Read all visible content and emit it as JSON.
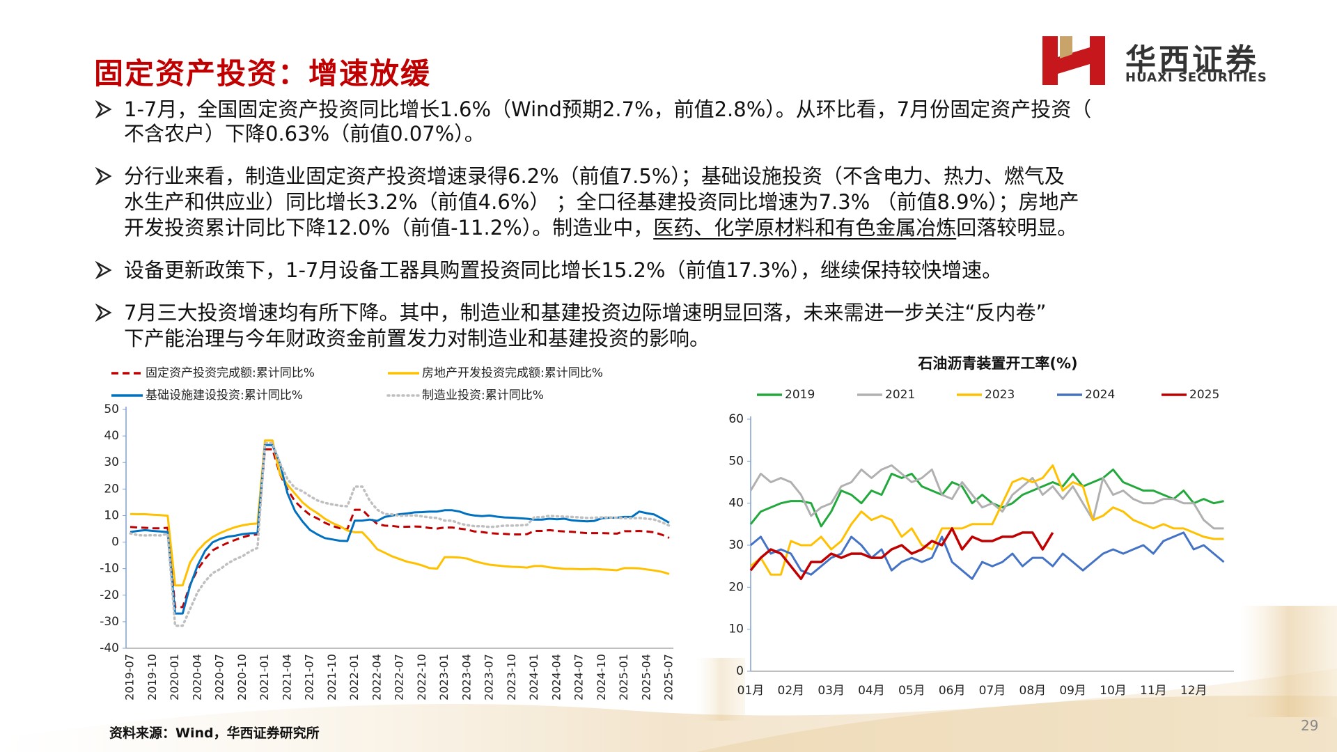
{
  "title": "固定资产投资：增速放缓",
  "logo": {
    "name": "华西证券",
    "english": "HUAXI SECURITIES"
  },
  "bullets": [
    [
      [
        "1-7月，全国固定资产投资同比增长1.6%（Wind预期2.7%，前值2.8%）。从环比看，7月份固定资产投资（"
      ],
      [
        "不含农户）下降0.63%（前值0.07%）。"
      ]
    ],
    [
      [
        "分行业来看，制造业固定资产投资增速录得6.2%（前值7.5%）；基础设施投资（不含电力、热力、燃气及"
      ],
      [
        "水生产和供应业）同比增长3.2%（前值4.6%） ；全口径基建投资同比增速为7.3% （前值8.9%）；房地产"
      ],
      [
        "开发投资累计同比下降12.0%（前值-11.2%）。制造业中，",
        "医药、化学原材料和有色金属冶炼",
        "回落较明显。"
      ]
    ],
    [
      [
        "设备更新政策下，1-7月设备工器具购置投资同比增长15.2%（前值17.3%），继续保持较快增速。"
      ]
    ],
    [
      [
        "7月三大投资增速均有所下降。其中，制造业和基建投资边际增速明显回落，未来需进一步关注“反内卷”"
      ],
      [
        "下产能治理与今年财政资金前置发力对制造业和基建投资的影响。"
      ]
    ]
  ],
  "source": "资料来源：Wind，华西证券研究所",
  "page_number": "29",
  "chart_data": [
    {
      "type": "line",
      "categories": [
        "2019-07",
        null,
        null,
        "2019-10",
        null,
        null,
        "2020-01",
        null,
        null,
        "2020-04",
        null,
        null,
        "2020-07",
        null,
        null,
        "2020-10",
        null,
        null,
        "2021-01",
        null,
        null,
        "2021-04",
        null,
        null,
        "2021-07",
        null,
        null,
        "2021-10",
        null,
        null,
        "2022-01",
        null,
        null,
        "2022-04",
        null,
        null,
        "2022-07",
        null,
        null,
        "2022-10",
        null,
        null,
        "2023-01",
        null,
        null,
        "2023-04",
        null,
        null,
        "2023-07",
        null,
        null,
        "2023-10",
        null,
        null,
        "2024-01",
        null,
        null,
        "2024-04",
        null,
        null,
        "2024-07",
        null,
        null,
        "2024-10",
        null,
        null,
        "2025-01",
        null,
        null,
        "2025-04",
        null,
        null,
        "2025-07"
      ],
      "ylim": [
        -40,
        50
      ],
      "yticks": [
        -40,
        -30,
        -20,
        -10,
        0,
        10,
        20,
        30,
        40,
        50
      ],
      "series": [
        {
          "name": "固定资产投资完成额:累计同比%",
          "color": "#c00000",
          "style": "dashed",
          "values": [
            5.7,
            5.5,
            5.4,
            5.2,
            5.2,
            5.4,
            -24.5,
            -24.5,
            -16.1,
            -10.3,
            -6.3,
            -3.1,
            -1.6,
            -0.3,
            0.8,
            1.8,
            2.6,
            2.9,
            35,
            35,
            25.6,
            19.9,
            15.4,
            12.6,
            10.3,
            8.9,
            7.3,
            6.1,
            5.2,
            4.9,
            12.2,
            12.2,
            9.3,
            6.8,
            6.2,
            6.1,
            5.7,
            5.8,
            5.9,
            5.8,
            5.3,
            5.1,
            5.5,
            5.5,
            5.1,
            4.7,
            4,
            3.8,
            3.4,
            3.2,
            3.1,
            2.9,
            2.9,
            3,
            4.2,
            4.2,
            4.5,
            4.2,
            4,
            3.9,
            3.6,
            3.4,
            3.4,
            3.4,
            3.3,
            3.2,
            4.1,
            4.1,
            4.2,
            4,
            3.7,
            2.8,
            1.6
          ]
        },
        {
          "name": "房地产开发投资完成额:累计同比%",
          "color": "#ffc000",
          "style": "solid",
          "values": [
            10.6,
            10.5,
            10.5,
            10.3,
            10.2,
            9.9,
            -16.3,
            -16.3,
            -7.7,
            -3.3,
            -0.3,
            1.9,
            3.4,
            4.6,
            5.6,
            6.3,
            6.8,
            7,
            38.3,
            38.3,
            25.6,
            21.6,
            18.3,
            15,
            12.7,
            10.9,
            8.8,
            7.2,
            6,
            4.4,
            3.7,
            3.7,
            0.7,
            -2.7,
            -4,
            -5.4,
            -6.4,
            -7.4,
            -8,
            -8.8,
            -9.8,
            -10,
            -5.7,
            -5.7,
            -5.8,
            -6.2,
            -7.2,
            -7.9,
            -8.5,
            -8.8,
            -9.1,
            -9.3,
            -9.4,
            -9.6,
            -9,
            -9,
            -9.5,
            -9.8,
            -10.1,
            -10.1,
            -10.2,
            -10.2,
            -10.1,
            -10.3,
            -10.4,
            -10.6,
            -9.8,
            -9.8,
            -9.9,
            -10.3,
            -10.7,
            -11.2,
            -12
          ]
        },
        {
          "name": "基础设施建设投资:累计同比%",
          "color": "#0070c0",
          "style": "solid",
          "values": [
            3.8,
            4.2,
            4.5,
            4.2,
            4,
            3.8,
            -26.9,
            -26.9,
            -16.4,
            -8.8,
            -3.3,
            -0.1,
            1.2,
            2,
            2.4,
            3,
            3.3,
            3.4,
            36.6,
            36.6,
            29.7,
            18.4,
            11.8,
            7.8,
            4.6,
            2.9,
            1.5,
            1,
            0.5,
            0.4,
            8.1,
            8.1,
            8.5,
            8,
            9.5,
            10,
            10.5,
            10.8,
            11.2,
            11.3,
            11.5,
            11.5,
            12,
            12,
            11.5,
            10.5,
            10,
            9.8,
            10,
            9.6,
            9.3,
            9.2,
            9,
            8.8,
            8.5,
            8.5,
            8.8,
            8.6,
            8.8,
            8.2,
            8,
            7.8,
            8,
            9,
            9.2,
            9.2,
            9.5,
            9.5,
            11.5,
            10.9,
            10.4,
            8.9,
            7.3
          ]
        },
        {
          "name": "制造业投资:累计同比%",
          "color": "#bfbfbf",
          "style": "dotted",
          "values": [
            3.3,
            2.6,
            2.5,
            2.6,
            2.5,
            3.1,
            -31.5,
            -31.5,
            -25.2,
            -18.8,
            -14.8,
            -11.7,
            -10.2,
            -8.1,
            -6.5,
            -5.3,
            -3.5,
            -2.2,
            37.3,
            37.3,
            29.8,
            23.8,
            20.4,
            19.2,
            17.3,
            15.7,
            14.8,
            14.2,
            13.7,
            13.5,
            20.9,
            20.9,
            15.6,
            12.2,
            10.6,
            10.4,
            9.9,
            10,
            10.1,
            9.7,
            9.3,
            9.1,
            8.1,
            8.1,
            7,
            6.4,
            6,
            6,
            5.7,
            5.9,
            6.2,
            6.2,
            6.3,
            6.5,
            9.4,
            9.4,
            9.9,
            9.7,
            9.6,
            9.5,
            9.3,
            9.1,
            9.2,
            9.3,
            9.3,
            9.2,
            9,
            9,
            9.1,
            8.8,
            8.5,
            7.5,
            6.2
          ]
        }
      ]
    },
    {
      "type": "line",
      "title": "石油沥青装置开工率(%)",
      "categories": [
        "01月",
        null,
        null,
        null,
        "02月",
        null,
        null,
        null,
        "03月",
        null,
        null,
        null,
        "04月",
        null,
        null,
        null,
        "05月",
        null,
        null,
        null,
        "06月",
        null,
        null,
        null,
        "07月",
        null,
        null,
        null,
        "08月",
        null,
        null,
        null,
        "09月",
        null,
        null,
        null,
        "10月",
        null,
        null,
        null,
        "11月",
        null,
        null,
        null,
        "12月",
        null,
        null,
        null
      ],
      "ylim": [
        0,
        60
      ],
      "yticks": [
        0,
        10,
        20,
        30,
        40,
        50,
        60
      ],
      "series": [
        {
          "name": "2019",
          "color": "#22a83c",
          "values": [
            35,
            38,
            39,
            40,
            40.5,
            40.5,
            40,
            34.5,
            38,
            43,
            42,
            40,
            43,
            42,
            47,
            46,
            47,
            44,
            43,
            42,
            45,
            44,
            40,
            42,
            40,
            39,
            40,
            42,
            43,
            44,
            45,
            44,
            47,
            44,
            45,
            46,
            48,
            45,
            44,
            43,
            43,
            42,
            41,
            43,
            40,
            41,
            40,
            40.5
          ]
        },
        {
          "name": "2021",
          "color": "#b0b0b0",
          "values": [
            43,
            47,
            45,
            46,
            45,
            42,
            37,
            39,
            40,
            44,
            45,
            48,
            46,
            48,
            49,
            47,
            45,
            46,
            48,
            42,
            41,
            45,
            42,
            39,
            40,
            38,
            42,
            44,
            46,
            42,
            44,
            41,
            44,
            40,
            36,
            46,
            42,
            43,
            41,
            40,
            40,
            41,
            41,
            40,
            40,
            36,
            34,
            34
          ]
        },
        {
          "name": "2023",
          "color": "#ffc000",
          "values": [
            25,
            27,
            23,
            23,
            31,
            30,
            30,
            32,
            29,
            31,
            35,
            38,
            36,
            37,
            36,
            32,
            34,
            30,
            29,
            34,
            34,
            34,
            35,
            35,
            35,
            40,
            45,
            46,
            45,
            46,
            49,
            43,
            45,
            44,
            36,
            37,
            39,
            38,
            36,
            35,
            34,
            35,
            34,
            34,
            33,
            32,
            31.5,
            31.5
          ]
        },
        {
          "name": "2024",
          "color": "#4472c4",
          "values": [
            30,
            32,
            28,
            29,
            28,
            24,
            23,
            25,
            27,
            28,
            32,
            30,
            27,
            29,
            24,
            26,
            27,
            26,
            27,
            32,
            26,
            24,
            22,
            26,
            25,
            26,
            28,
            25,
            27,
            27,
            25,
            28,
            26,
            24,
            26,
            28,
            29,
            28,
            29,
            30,
            28,
            31,
            32,
            33,
            29,
            30,
            28,
            26
          ]
        },
        {
          "name": "2025",
          "color": "#c00000",
          "values": [
            24,
            27,
            29,
            28,
            25,
            22,
            26,
            26,
            28,
            27,
            28,
            28,
            27,
            27,
            29,
            30,
            28,
            29,
            31,
            30,
            34,
            29,
            32,
            31,
            31,
            32,
            32,
            33,
            33,
            29,
            33,
            null,
            null,
            null,
            null,
            null,
            null,
            null,
            null,
            null,
            null,
            null,
            null,
            null,
            null,
            null,
            null,
            null
          ]
        }
      ]
    }
  ]
}
